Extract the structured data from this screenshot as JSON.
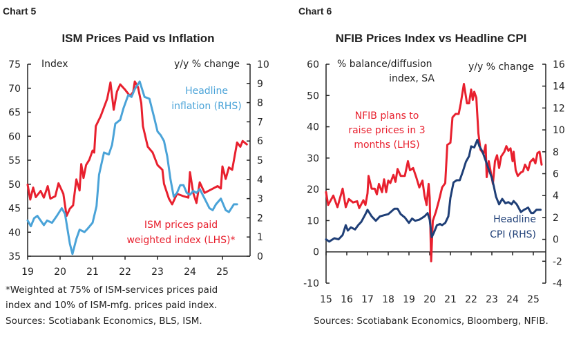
{
  "colors": {
    "red": "#e8202e",
    "light_blue": "#4aa3d8",
    "dark_blue": "#1f3f77",
    "axis": "#222222"
  },
  "chart_data": [
    {
      "type": "line",
      "header": "Chart 5",
      "title": "ISM Prices Paid vs Inflation",
      "left_axis_label": "Index",
      "right_axis_label": "y/y % change",
      "xlim": [
        2019,
        2025.85
      ],
      "x_ticks": [
        2019,
        2020,
        2021,
        2022,
        2023,
        2024,
        2025
      ],
      "x_tick_labels": [
        "19",
        "20",
        "21",
        "22",
        "23",
        "24",
        "25"
      ],
      "ylim_left": [
        35,
        75
      ],
      "y_ticks_left": [
        "75",
        "70",
        "65",
        "60",
        "55",
        "50",
        "45",
        "40",
        "35"
      ],
      "ylim_right": [
        0,
        10
      ],
      "y_ticks_right": [
        "10",
        "9",
        "8",
        "7",
        "6",
        "5",
        "4",
        "3",
        "2",
        "1",
        "0"
      ],
      "grid": false,
      "series": [
        {
          "name": "ISM prices paid weighted index (LHS)*",
          "name_lines": [
            "ISM prices paid",
            "weighted index (LHS)*"
          ],
          "axis": "left",
          "color": "#e8202e",
          "x": [
            2019.0,
            2019.08,
            2019.17,
            2019.25,
            2019.4,
            2019.5,
            2019.62,
            2019.7,
            2019.85,
            2019.95,
            2020.1,
            2020.2,
            2020.3,
            2020.4,
            2020.5,
            2020.6,
            2020.65,
            2020.72,
            2020.8,
            2020.9,
            2021.0,
            2021.05,
            2021.1,
            2021.25,
            2021.45,
            2021.55,
            2021.65,
            2021.75,
            2021.85,
            2022.0,
            2022.15,
            2022.25,
            2022.3,
            2022.4,
            2022.5,
            2022.55,
            2022.7,
            2022.85,
            2023.0,
            2023.15,
            2023.2,
            2023.35,
            2023.45,
            2023.6,
            2023.8,
            2023.95,
            2024.0,
            2024.1,
            2024.2,
            2024.3,
            2024.45,
            2024.65,
            2024.85,
            2024.95,
            2025.0,
            2025.1,
            2025.2,
            2025.3,
            2025.45,
            2025.55,
            2025.62,
            2025.75
          ],
          "y": [
            49.9,
            46.8,
            49.3,
            47.3,
            48.6,
            47.2,
            49.6,
            47.0,
            47.5,
            50.2,
            48.0,
            43.4,
            44.9,
            45.6,
            51.0,
            48.7,
            54.2,
            51.3,
            54.0,
            55.1,
            57.0,
            56.6,
            62.1,
            64.2,
            67.8,
            71.2,
            65.5,
            69.3,
            70.8,
            69.7,
            68.4,
            69.2,
            71.4,
            70.2,
            66.9,
            62.1,
            57.8,
            56.6,
            54.0,
            53.0,
            50.1,
            47.0,
            45.8,
            48.0,
            47.5,
            47.2,
            52.5,
            48.2,
            46.1,
            50.4,
            48.2,
            48.9,
            49.6,
            49.1,
            53.7,
            51.1,
            53.5,
            53.0,
            58.7,
            57.8,
            59.0,
            58.3
          ]
        },
        {
          "name": "Headline inflation (RHS)",
          "name_lines": [
            "Headline",
            "inflation (RHS)"
          ],
          "axis": "right",
          "color": "#4aa3d8",
          "x": [
            2019.0,
            2019.1,
            2019.2,
            2019.3,
            2019.5,
            2019.6,
            2019.75,
            2019.9,
            2020.05,
            2020.15,
            2020.3,
            2020.38,
            2020.5,
            2020.6,
            2020.75,
            2020.85,
            2021.0,
            2021.12,
            2021.2,
            2021.35,
            2021.5,
            2021.6,
            2021.7,
            2021.85,
            2021.95,
            2022.1,
            2022.2,
            2022.3,
            2022.45,
            2022.6,
            2022.75,
            2022.9,
            2023.0,
            2023.1,
            2023.2,
            2023.3,
            2023.4,
            2023.5,
            2023.6,
            2023.7,
            2023.8,
            2023.9,
            2024.0,
            2024.1,
            2024.2,
            2024.3,
            2024.45,
            2024.6,
            2024.7,
            2024.8,
            2024.95,
            2025.1,
            2025.2,
            2025.35,
            2025.45
          ],
          "y": [
            1.86,
            1.56,
            1.98,
            2.1,
            1.62,
            1.86,
            1.74,
            2.1,
            2.5,
            2.2,
            0.66,
            0.12,
            0.9,
            1.38,
            1.26,
            1.44,
            1.74,
            2.6,
            4.25,
            5.4,
            5.3,
            5.8,
            6.9,
            7.1,
            7.7,
            8.4,
            8.3,
            8.7,
            9.1,
            8.3,
            8.2,
            7.2,
            6.5,
            6.3,
            6.0,
            5.2,
            4.0,
            3.1,
            3.3,
            3.7,
            3.7,
            3.3,
            3.2,
            3.4,
            3.3,
            3.5,
            3.0,
            2.5,
            2.4,
            2.7,
            3.0,
            2.4,
            2.3,
            2.7,
            2.7
          ]
        }
      ],
      "footnotes": [
        "*Weighted at 75% of ISM-services prices paid",
        "index and 10% of ISM-mfg. prices paid index.",
        "Sources: Scotiabank Economics, BLS, ISM."
      ]
    },
    {
      "type": "line",
      "header": "Chart 6",
      "title": "NFIB Prices Index vs Headline CPI",
      "left_axis_label_lines": [
        "% balance/diffusion",
        "index, SA"
      ],
      "right_axis_label": "y/y % change",
      "xlim": [
        2015,
        2025.6
      ],
      "x_ticks": [
        2015,
        2016,
        2017,
        2018,
        2019,
        2020,
        2021,
        2022,
        2023,
        2024,
        2025
      ],
      "x_tick_labels": [
        "15",
        "16",
        "17",
        "18",
        "19",
        "20",
        "21",
        "22",
        "23",
        "24",
        "25"
      ],
      "ylim_left": [
        -10,
        60
      ],
      "y_ticks_left": [
        "60",
        "50",
        "40",
        "30",
        "20",
        "10",
        "0",
        "-10"
      ],
      "ylim_right": [
        -4,
        16
      ],
      "y_ticks_right": [
        "16",
        "14",
        "12",
        "10",
        "8",
        "6",
        "4",
        "2",
        "0",
        "-2",
        "-4"
      ],
      "grid": false,
      "series": [
        {
          "name": "NFIB plans to raise prices in 3 months (LHS)",
          "name_lines": [
            "NFIB plans to",
            "raise prices in 3",
            "months (LHS)"
          ],
          "axis": "left",
          "color": "#e8202e",
          "x": [
            2015.0,
            2015.1,
            2015.35,
            2015.55,
            2015.8,
            2015.95,
            2016.1,
            2016.3,
            2016.5,
            2016.6,
            2016.8,
            2016.9,
            2017.0,
            2017.05,
            2017.2,
            2017.35,
            2017.45,
            2017.55,
            2017.7,
            2017.8,
            2017.9,
            2018.0,
            2018.1,
            2018.25,
            2018.35,
            2018.45,
            2018.6,
            2018.8,
            2018.95,
            2019.05,
            2019.2,
            2019.35,
            2019.5,
            2019.65,
            2019.75,
            2019.85,
            2019.95,
            2020.0,
            2020.07,
            2020.15,
            2020.3,
            2020.45,
            2020.6,
            2020.75,
            2020.85,
            2021.0,
            2021.1,
            2021.25,
            2021.4,
            2021.5,
            2021.65,
            2021.8,
            2021.9,
            2022.0,
            2022.08,
            2022.15,
            2022.25,
            2022.35,
            2022.45,
            2022.6,
            2022.7,
            2022.75,
            2022.85,
            2022.95,
            2023.05,
            2023.15,
            2023.25,
            2023.35,
            2023.45,
            2023.6,
            2023.7,
            2023.8,
            2023.9,
            2024.0,
            2024.05,
            2024.15,
            2024.25,
            2024.4,
            2024.5,
            2024.6,
            2024.75,
            2024.85,
            2025.0,
            2025.1,
            2025.2,
            2025.3,
            2025.4
          ],
          "y": [
            19.1,
            15,
            18,
            14.3,
            20.2,
            14.3,
            16.9,
            15.8,
            16.2,
            14,
            16.5,
            15,
            18.7,
            24.3,
            20.2,
            20.2,
            18.4,
            21.7,
            19.1,
            23.2,
            19.1,
            22.8,
            22,
            24.6,
            22.4,
            26.5,
            24.3,
            24.3,
            29,
            26.1,
            26.8,
            23.9,
            20.6,
            22.8,
            18,
            15,
            21.7,
            17.3,
            -3,
            9.9,
            12.8,
            16.5,
            20.6,
            22,
            34.2,
            34.9,
            43,
            44.1,
            44.1,
            47.5,
            53.7,
            47.5,
            47.5,
            51.9,
            48.6,
            51.2,
            49.3,
            37.9,
            32.7,
            31.3,
            34.2,
            23.9,
            29,
            25.4,
            21.7,
            29,
            30.9,
            26.8,
            30.5,
            32,
            33.8,
            32.3,
            33.1,
            29,
            32,
            26.1,
            24.3,
            25.4,
            25.7,
            27.9,
            26.1,
            28.7,
            29.8,
            28.3,
            31.6,
            32,
            27.9
          ]
        },
        {
          "name": "Headline CPI (RHS)",
          "name_lines": [
            "Headline",
            "CPI (RHS)"
          ],
          "axis": "right",
          "color": "#1f3f77",
          "x": [
            2015.0,
            2015.15,
            2015.4,
            2015.6,
            2015.8,
            2015.95,
            2016.05,
            2016.2,
            2016.4,
            2016.55,
            2016.7,
            2016.9,
            2017.0,
            2017.2,
            2017.4,
            2017.6,
            2017.8,
            2018.0,
            2018.3,
            2018.45,
            2018.6,
            2018.8,
            2019.0,
            2019.15,
            2019.3,
            2019.5,
            2019.75,
            2019.9,
            2020.0,
            2020.1,
            2020.2,
            2020.35,
            2020.5,
            2020.6,
            2020.75,
            2020.9,
            2021.0,
            2021.15,
            2021.3,
            2021.45,
            2021.6,
            2021.75,
            2021.9,
            2022.0,
            2022.15,
            2022.3,
            2022.4,
            2022.55,
            2022.7,
            2022.85,
            2023.0,
            2023.1,
            2023.2,
            2023.35,
            2023.5,
            2023.65,
            2023.8,
            2023.95,
            2024.05,
            2024.2,
            2024.4,
            2024.55,
            2024.75,
            2024.9,
            2025.0,
            2025.15,
            2025.35
          ],
          "y": [
            0.0,
            -0.2,
            0.1,
            0.0,
            0.4,
            1.3,
            0.8,
            1.1,
            0.9,
            1.3,
            1.6,
            2.3,
            2.7,
            2.1,
            1.7,
            2.1,
            2.2,
            2.3,
            2.8,
            2.8,
            2.3,
            2.0,
            1.5,
            1.9,
            1.7,
            1.8,
            2.1,
            2.4,
            1.8,
            0.2,
            0.6,
            1.3,
            1.4,
            1.3,
            1.5,
            2.1,
            3.8,
            5.2,
            5.4,
            5.4,
            6.2,
            7.1,
            7.6,
            8.5,
            8.4,
            9.1,
            8.5,
            8.0,
            7.2,
            6.4,
            5.6,
            4.8,
            3.9,
            3.2,
            3.7,
            3.3,
            3.4,
            3.2,
            3.5,
            3.2,
            2.5,
            2.7,
            2.9,
            2.4,
            2.4,
            2.7,
            2.7
          ]
        }
      ],
      "footnotes": [
        "Sources: Scotiabank Economics, Bloomberg, NFIB."
      ]
    }
  ]
}
